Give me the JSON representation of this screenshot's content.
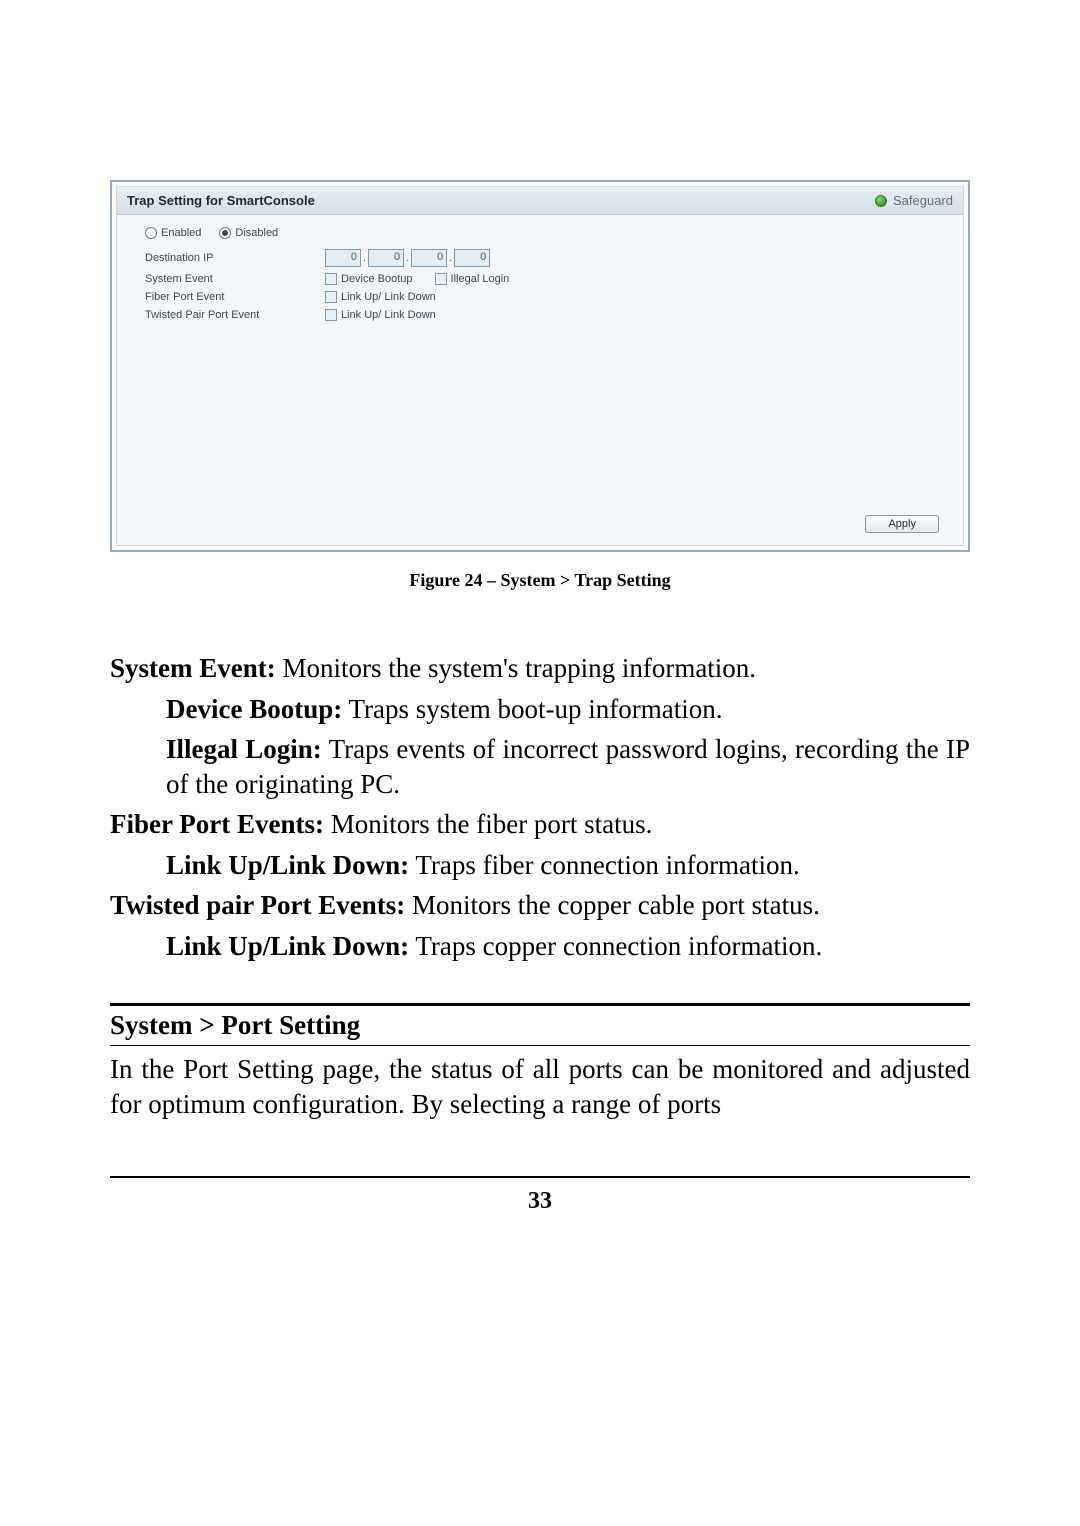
{
  "panel": {
    "title": "Trap Setting for SmartConsole",
    "safeguard_label": "Safeguard",
    "radios": {
      "enabled": "Enabled",
      "disabled": "Disabled",
      "selected": "disabled"
    },
    "rows": {
      "destination_ip": {
        "label": "Destination IP",
        "octets": [
          "0",
          "0",
          "0",
          "0"
        ]
      },
      "system_event": {
        "label": "System Event",
        "cb1": "Device Bootup",
        "cb2": "Illegal Login"
      },
      "fiber_port_event": {
        "label": "Fiber Port Event",
        "cb1": "Link Up/ Link Down"
      },
      "twisted_pair_port_event": {
        "label": "Twisted Pair Port Event",
        "cb1": "Link Up/ Link Down"
      }
    },
    "apply": "Apply"
  },
  "caption": "Figure 24 – System > Trap Setting",
  "text": {
    "p1_bold": "System Event:",
    "p1_rest": " Monitors the system's trapping information.",
    "p2_bold": "Device Bootup:",
    "p2_rest": " Traps system boot-up information.",
    "p3_bold": "Illegal Login:",
    "p3_rest": " Traps events of incorrect password logins, recording the IP of the originating PC.",
    "p4_bold": "Fiber Port Events:",
    "p4_rest": " Monitors the fiber port status.",
    "p5_bold": "Link Up/Link Down:",
    "p5_rest": " Traps fiber connection information.",
    "p6_bold": "Twisted pair Port Events:",
    "p6_rest": " Monitors the copper cable port status.",
    "p7_bold": "Link Up/Link Down:",
    "p7_rest": " Traps copper connection information."
  },
  "section": {
    "title": "System > Port Setting",
    "para": "In the Port Setting page, the status of all ports can be monitored and adjusted for optimum configuration. By selecting a range of ports"
  },
  "page_number": "33"
}
